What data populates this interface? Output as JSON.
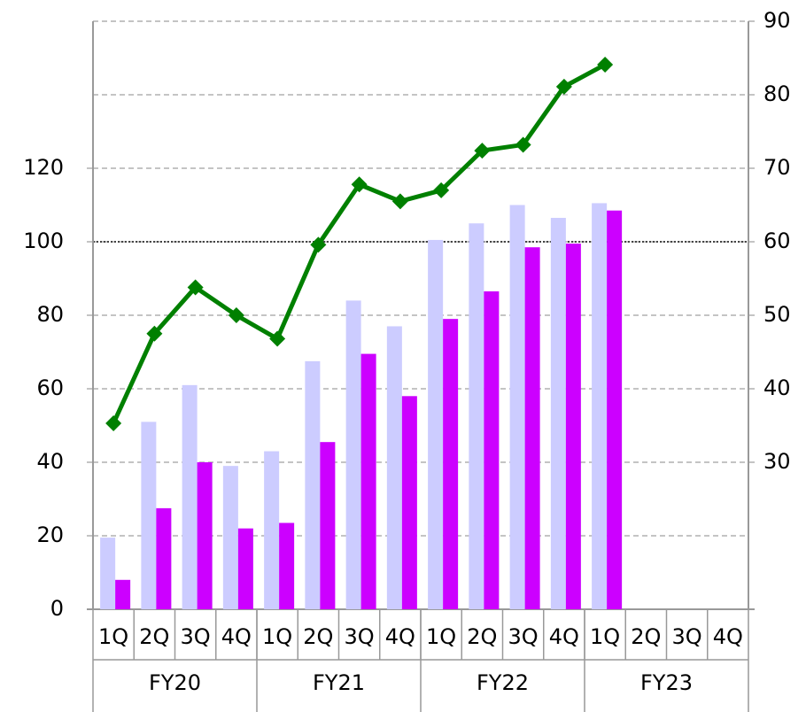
{
  "chart_data": {
    "type": "bar",
    "categories": [
      "1Q",
      "2Q",
      "3Q",
      "4Q",
      "1Q",
      "2Q",
      "3Q",
      "4Q",
      "1Q",
      "2Q",
      "3Q",
      "4Q",
      "1Q",
      "2Q",
      "3Q",
      "4Q"
    ],
    "groups": [
      "FY20",
      "FY21",
      "FY22",
      "FY23"
    ],
    "series": [
      {
        "color": "#ccccff",
        "values": [
          19.5,
          51,
          61,
          39,
          43,
          67.5,
          84,
          77,
          100.5,
          105,
          110,
          106.5,
          110.5,
          null,
          null,
          null
        ]
      },
      {
        "color": "#cc00ff",
        "values": [
          8,
          27.5,
          40,
          22,
          23.5,
          45.5,
          69.5,
          58,
          79,
          86.5,
          98.5,
          99.5,
          108.5,
          null,
          null,
          null
        ]
      },
      {
        "type": "line",
        "axis": "y2",
        "color": "#008000",
        "values": [
          35.3,
          47.5,
          53.8,
          50,
          46.8,
          59.6,
          67.8,
          65.5,
          67,
          72.4,
          73.2,
          81.1,
          84.1,
          null,
          null,
          null
        ]
      }
    ],
    "ylim": [
      0,
      160
    ],
    "yticks": [
      0,
      20,
      40,
      60,
      80,
      100,
      120
    ],
    "y2lim": [
      10,
      90
    ],
    "y2ticks": [
      30,
      40,
      50,
      60,
      70,
      80,
      90
    ],
    "reference_line": 100,
    "grid": true
  }
}
